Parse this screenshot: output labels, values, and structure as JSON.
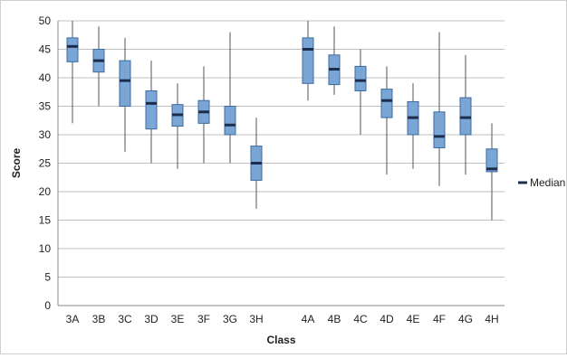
{
  "chart_data": {
    "type": "box",
    "title": "",
    "xlabel": "Class",
    "ylabel": "Score",
    "ylim": [
      0,
      50
    ],
    "ytick_step": 5,
    "grid": true,
    "legend": {
      "placement": "right",
      "entries": [
        "Median"
      ]
    },
    "colors": {
      "box": "#7aa6d6",
      "box_edge": "#3d6aa0",
      "median": "#1f2d4d",
      "whisker": "#555555",
      "grid": "#bfbfbf"
    },
    "groups": [
      {
        "categories": [
          "3A",
          "3B",
          "3C",
          "3D",
          "3E",
          "3F",
          "3G",
          "3H"
        ]
      },
      {
        "categories": [
          "4A",
          "4B",
          "4C",
          "4D",
          "4E",
          "4F",
          "4G",
          "4H"
        ]
      }
    ],
    "series": [
      {
        "category": "3A",
        "min": 32,
        "q1": 42.8,
        "median": 45.5,
        "q3": 47,
        "max": 50
      },
      {
        "category": "3B",
        "min": 35,
        "q1": 41,
        "median": 43,
        "q3": 45,
        "max": 49
      },
      {
        "category": "3C",
        "min": 27,
        "q1": 35,
        "median": 39.5,
        "q3": 43,
        "max": 47
      },
      {
        "category": "3D",
        "min": 25,
        "q1": 31,
        "median": 35.5,
        "q3": 37.7,
        "max": 43
      },
      {
        "category": "3E",
        "min": 24,
        "q1": 31.5,
        "median": 33.5,
        "q3": 35.3,
        "max": 39
      },
      {
        "category": "3F",
        "min": 25,
        "q1": 32,
        "median": 34,
        "q3": 36,
        "max": 42
      },
      {
        "category": "3G",
        "min": 25,
        "q1": 30,
        "median": 31.7,
        "q3": 35,
        "max": 48
      },
      {
        "category": "3H",
        "min": 17,
        "q1": 22,
        "median": 25,
        "q3": 28,
        "max": 33
      },
      {
        "category": "4A",
        "min": 36,
        "q1": 39,
        "median": 45,
        "q3": 47,
        "max": 50
      },
      {
        "category": "4B",
        "min": 37,
        "q1": 38.8,
        "median": 41.5,
        "q3": 44,
        "max": 49
      },
      {
        "category": "4C",
        "min": 30,
        "q1": 37.7,
        "median": 39.5,
        "q3": 42,
        "max": 45
      },
      {
        "category": "4D",
        "min": 23,
        "q1": 33,
        "median": 36,
        "q3": 38,
        "max": 42
      },
      {
        "category": "4E",
        "min": 24,
        "q1": 30,
        "median": 33,
        "q3": 35.8,
        "max": 39
      },
      {
        "category": "4F",
        "min": 21,
        "q1": 27.7,
        "median": 29.7,
        "q3": 34,
        "max": 48
      },
      {
        "category": "4G",
        "min": 23,
        "q1": 30,
        "median": 33,
        "q3": 36.5,
        "max": 44
      },
      {
        "category": "4H",
        "min": 15,
        "q1": 23.5,
        "median": 24,
        "q3": 27.5,
        "max": 32
      }
    ]
  }
}
